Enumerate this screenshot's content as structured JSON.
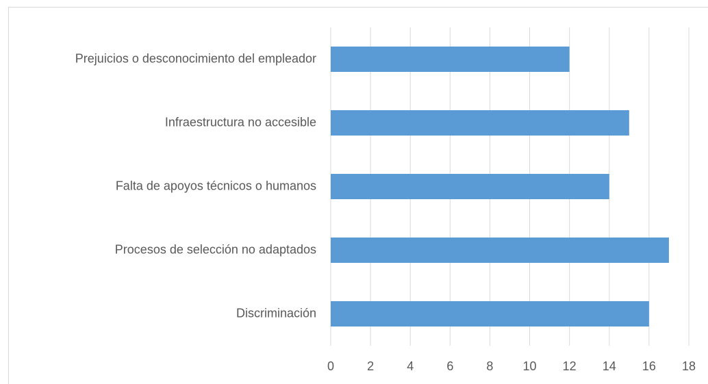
{
  "chart_data": {
    "type": "bar",
    "orientation": "horizontal",
    "categories": [
      "Prejuicios o desconocimiento del empleador",
      "Infraestructura no accesible",
      "Falta de apoyos técnicos o humanos",
      "Procesos de selección no adaptados",
      "Discriminación"
    ],
    "values": [
      12,
      15,
      14,
      17,
      16
    ],
    "color": "#5b9bd5",
    "xlim": [
      0,
      18
    ],
    "xticks": [
      0,
      2,
      4,
      6,
      8,
      10,
      12,
      14,
      16,
      18
    ],
    "grid": true
  }
}
